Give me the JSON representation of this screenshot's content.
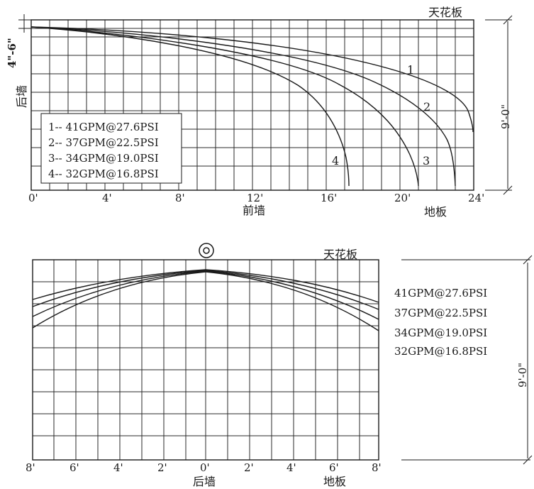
{
  "top": {
    "ceiling_label": "天花板",
    "back_wall_label": "后墙",
    "front_wall_label": "前墙",
    "floor_label": "地板",
    "top_dim_label": "4\"-6\"",
    "height_dim_label": "9'-0\"",
    "x_ticks": [
      "0'",
      "4'",
      "8'",
      "12'",
      "16'",
      "20'",
      "24'"
    ],
    "legend": [
      "1-- 41GPM@27.6PSI",
      "2-- 37GPM@22.5PSI",
      "3-- 34GPM@19.0PSI",
      "4-- 32GPM@16.8PSI"
    ],
    "curve_numbers": [
      "1",
      "2",
      "3",
      "4"
    ]
  },
  "bottom": {
    "ceiling_label": "天花板",
    "back_wall_label": "后墙",
    "floor_label": "地板",
    "height_dim_label": "9'-0\"",
    "x_ticks": [
      "8'",
      "6'",
      "4'",
      "2'",
      "0'",
      "2'",
      "4'",
      "6'",
      "8'"
    ],
    "legend": [
      "41GPM@27.6PSI",
      "37GPM@22.5PSI",
      "34GPM@19.0PSI",
      "32GPM@16.8PSI"
    ],
    "sprinkler_icon": "target-icon"
  }
}
